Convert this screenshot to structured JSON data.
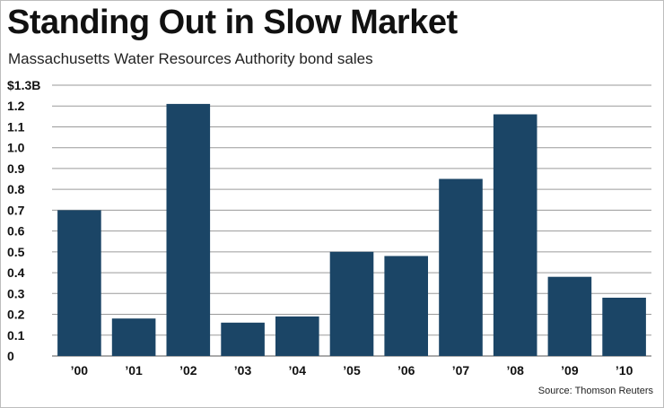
{
  "chart_data": {
    "type": "bar",
    "title": "Standing Out in Slow Market",
    "subtitle": "Massachusetts Water Resources Authority bond sales",
    "source": "Source: Thomson Reuters",
    "categories": [
      "’00",
      "’01",
      "’02",
      "’03",
      "’04",
      "’05",
      "’06",
      "’07",
      "’08",
      "’09",
      "’10"
    ],
    "values": [
      0.7,
      0.18,
      1.21,
      0.16,
      0.19,
      0.5,
      0.48,
      0.85,
      1.16,
      0.38,
      0.28
    ],
    "yticks": [
      {
        "value": 0,
        "label": "0"
      },
      {
        "value": 0.1,
        "label": "0.1"
      },
      {
        "value": 0.2,
        "label": "0.2"
      },
      {
        "value": 0.3,
        "label": "0.3"
      },
      {
        "value": 0.4,
        "label": "0.4"
      },
      {
        "value": 0.5,
        "label": "0.5"
      },
      {
        "value": 0.6,
        "label": "0.6"
      },
      {
        "value": 0.7,
        "label": "0.7"
      },
      {
        "value": 0.8,
        "label": "0.8"
      },
      {
        "value": 0.9,
        "label": "0.9"
      },
      {
        "value": 1.0,
        "label": "1.0"
      },
      {
        "value": 1.1,
        "label": "1.1"
      },
      {
        "value": 1.2,
        "label": "1.2"
      },
      {
        "value": 1.3,
        "label": "$1.3B"
      }
    ],
    "ylim": [
      0,
      1.3
    ],
    "xlabel": "",
    "ylabel": "",
    "grid": true,
    "bar_color": "#1b4566"
  }
}
